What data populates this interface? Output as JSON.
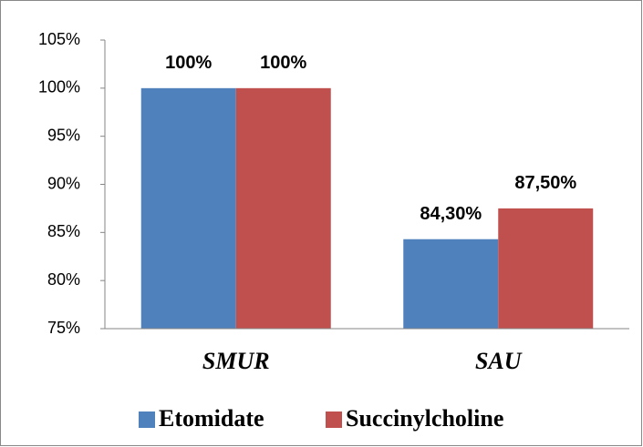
{
  "chart_data": {
    "type": "bar",
    "categories": [
      "SMUR",
      "SAU"
    ],
    "series": [
      {
        "name": "Etomidate",
        "color": "#4f81bd",
        "values": [
          100,
          84.3
        ],
        "value_labels": [
          "100%",
          "84,30%"
        ]
      },
      {
        "name": "Succinylcholine",
        "color": "#c0504d",
        "values": [
          100,
          87.5
        ],
        "value_labels": [
          "100%",
          "87,50%"
        ]
      }
    ],
    "ylim": [
      75,
      105
    ],
    "yticks": [
      {
        "value": 75,
        "label": "75%"
      },
      {
        "value": 80,
        "label": "80%"
      },
      {
        "value": 85,
        "label": "85%"
      },
      {
        "value": 90,
        "label": "90%"
      },
      {
        "value": 95,
        "label": "95%"
      },
      {
        "value": 100,
        "label": "100%"
      },
      {
        "value": 105,
        "label": "105%"
      }
    ],
    "grid": false,
    "legend": "bottom"
  }
}
